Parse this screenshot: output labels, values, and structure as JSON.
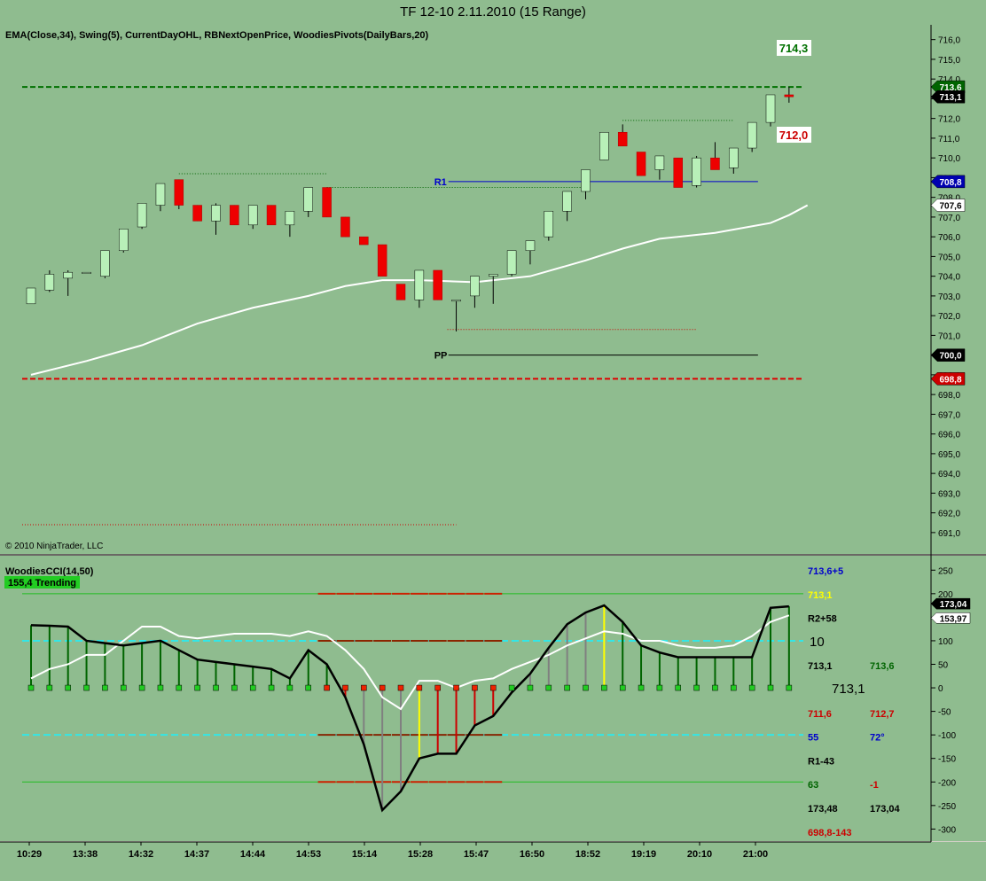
{
  "window": {
    "title": "TF 12-10  2.11.2010 (15 Range)"
  },
  "price_panel": {
    "indicators": "EMA(Close,34), Swing(5), CurrentDayOHL, RBNextOpenPrice, WoodiesPivots(DailyBars,20)",
    "copyright": "© 2010 NinjaTrader, LLC",
    "floating_labels": {
      "high": "714,3",
      "low": "712,0"
    },
    "pivot_labels": {
      "r1": "R1",
      "pp": "PP"
    },
    "axis_badges": [
      {
        "text": "713,6",
        "value": 713.6,
        "bg": "#006400",
        "fg": "#ffffff"
      },
      {
        "text": "713,1",
        "value": 713.1,
        "bg": "#000000",
        "fg": "#ffffff"
      },
      {
        "text": "708,8",
        "value": 708.8,
        "bg": "#0000b0",
        "fg": "#ffffff"
      },
      {
        "text": "707,6",
        "value": 707.6,
        "bg": "#ffffff",
        "fg": "#000000"
      },
      {
        "text": "700,0",
        "value": 700.0,
        "bg": "#000000",
        "fg": "#ffffff"
      },
      {
        "text": "698,8",
        "value": 698.8,
        "bg": "#cc0000",
        "fg": "#ffffff"
      }
    ]
  },
  "cci_panel": {
    "title": "WoodiesCCI(14,50)",
    "status": "155,4 Trending",
    "right_labels": [
      {
        "col": 1,
        "row": 0,
        "text": "713,6+5",
        "color": "#0000cc"
      },
      {
        "col": 1,
        "row": 1,
        "text": "713,1",
        "color": "#ffff00"
      },
      {
        "col": 1,
        "row": 2,
        "text": "R2+58",
        "color": "#000000"
      },
      {
        "col": 1,
        "row": 4,
        "text": "713,1",
        "color": "#000000"
      },
      {
        "col": 2,
        "row": 4,
        "text": "713,6",
        "color": "#006400"
      },
      {
        "col": 1,
        "row": 6,
        "text": "711,6",
        "color": "#cc0000"
      },
      {
        "col": 2,
        "row": 6,
        "text": "712,7",
        "color": "#cc0000"
      },
      {
        "col": 1,
        "row": 7,
        "text": "55",
        "color": "#0000cc"
      },
      {
        "col": 2,
        "row": 7,
        "text": "72°",
        "color": "#0000cc"
      },
      {
        "col": 1,
        "row": 8,
        "text": "R1-43",
        "color": "#000000"
      },
      {
        "col": 1,
        "row": 9,
        "text": "63",
        "color": "#006400"
      },
      {
        "col": 2,
        "row": 9,
        "text": "-1",
        "color": "#cc0000"
      },
      {
        "col": 1,
        "row": 10,
        "text": "173,48",
        "color": "#000000"
      },
      {
        "col": 2,
        "row": 10,
        "text": "173,04",
        "color": "#000000"
      },
      {
        "col": 1,
        "row": 11,
        "text": "698,8-143",
        "color": "#cc0000"
      }
    ],
    "big_labels": {
      "count": "10",
      "price": "713,1"
    },
    "axis_badges": [
      {
        "text": "173,04",
        "value": 173.04,
        "bg": "#000000",
        "fg": "#ffffff"
      },
      {
        "text": "153,97",
        "value": 153.97,
        "bg": "#ffffff",
        "fg": "#000000"
      }
    ]
  },
  "chart_data": {
    "type": "candlestick",
    "price_axis": {
      "ylim": [
        690.5,
        716.3
      ],
      "ticks": [
        "716,0",
        "715,0",
        "714,0",
        "713,0",
        "712,0",
        "711,0",
        "710,0",
        "709,0",
        "708,0",
        "707,0",
        "706,0",
        "705,0",
        "704,0",
        "703,0",
        "702,0",
        "701,0",
        "700,0",
        "699,0",
        "698,0",
        "697,0",
        "696,0",
        "695,0",
        "694,0",
        "693,0",
        "692,0",
        "691,0"
      ]
    },
    "cci_axis": {
      "ylim": [
        -320,
        275
      ],
      "ticks": [
        "250",
        "200",
        "150",
        "100",
        "50",
        "0",
        "-50",
        "-100",
        "-150",
        "-200",
        "-250",
        "-300"
      ]
    },
    "time_labels": [
      "10:29",
      "13:38",
      "14:32",
      "14:37",
      "14:44",
      "14:53",
      "15:14",
      "15:28",
      "15:47",
      "16:50",
      "18:52",
      "19:19",
      "20:10",
      "21:00"
    ],
    "candles": [
      [
        702.6,
        703.4,
        702.6,
        703.4
      ],
      [
        703.3,
        704.3,
        703.2,
        704.1
      ],
      [
        703.9,
        704.3,
        703.0,
        704.2
      ],
      [
        704.2,
        704.2,
        704.2,
        704.2
      ],
      [
        704.0,
        705.3,
        703.9,
        705.3
      ],
      [
        705.3,
        706.4,
        705.2,
        706.4
      ],
      [
        706.5,
        707.7,
        706.4,
        707.7
      ],
      [
        707.6,
        708.7,
        707.3,
        708.7
      ],
      [
        708.9,
        708.9,
        707.4,
        707.6
      ],
      [
        707.6,
        707.6,
        706.8,
        706.8
      ],
      [
        706.8,
        707.7,
        706.1,
        707.6
      ],
      [
        707.6,
        707.6,
        706.6,
        706.6
      ],
      [
        706.6,
        707.6,
        706.4,
        707.6
      ],
      [
        707.6,
        707.6,
        706.6,
        706.6
      ],
      [
        706.6,
        707.3,
        706.0,
        707.3
      ],
      [
        707.3,
        708.5,
        707.0,
        708.5
      ],
      [
        708.5,
        708.5,
        707.0,
        707.0
      ],
      [
        707.0,
        707.0,
        706.0,
        706.0
      ],
      [
        706.0,
        706.0,
        705.6,
        705.6
      ],
      [
        705.6,
        705.6,
        704.0,
        704.0
      ],
      [
        703.6,
        703.6,
        702.8,
        702.8
      ],
      [
        702.8,
        704.3,
        702.4,
        704.3
      ],
      [
        704.3,
        704.3,
        702.8,
        702.8
      ],
      [
        702.8,
        702.8,
        701.2,
        702.8
      ],
      [
        703.0,
        704.0,
        702.4,
        704.0
      ],
      [
        704.0,
        704.1,
        702.6,
        704.1
      ],
      [
        704.1,
        705.3,
        704.0,
        705.3
      ],
      [
        705.3,
        705.8,
        704.6,
        705.8
      ],
      [
        706.0,
        707.3,
        705.8,
        707.3
      ],
      [
        707.3,
        708.3,
        706.8,
        708.3
      ],
      [
        708.3,
        709.4,
        707.9,
        709.4
      ],
      [
        709.9,
        711.3,
        709.9,
        711.3
      ],
      [
        711.3,
        711.7,
        710.6,
        710.6
      ],
      [
        710.3,
        710.3,
        709.1,
        709.1
      ],
      [
        709.4,
        710.1,
        708.9,
        710.1
      ],
      [
        710.0,
        710.0,
        708.5,
        708.5
      ],
      [
        708.6,
        710.1,
        708.5,
        710.0
      ],
      [
        710.0,
        710.8,
        709.4,
        709.4
      ],
      [
        709.5,
        710.5,
        709.2,
        710.5
      ],
      [
        710.5,
        711.8,
        710.3,
        711.8
      ],
      [
        711.8,
        713.2,
        711.6,
        713.2
      ],
      [
        713.2,
        713.6,
        712.8,
        713.1
      ]
    ],
    "ema34": [
      [
        0,
        699.0
      ],
      [
        3,
        699.7
      ],
      [
        6,
        700.5
      ],
      [
        9,
        701.6
      ],
      [
        12,
        702.4
      ],
      [
        15,
        703.0
      ],
      [
        17,
        703.5
      ],
      [
        19,
        703.8
      ],
      [
        21,
        703.8
      ],
      [
        24,
        703.7
      ],
      [
        27,
        704.0
      ],
      [
        30,
        704.8
      ],
      [
        32,
        705.4
      ],
      [
        34,
        705.9
      ],
      [
        37,
        706.2
      ],
      [
        40,
        706.7
      ],
      [
        41,
        707.1
      ],
      [
        42,
        707.6
      ]
    ],
    "swing_high_levels": [
      {
        "from": 8,
        "to": 16,
        "value": 709.2
      },
      {
        "from": 16,
        "to": 30,
        "value": 708.5
      },
      {
        "from": 32,
        "to": 38,
        "value": 711.9
      }
    ],
    "swing_low_levels": [
      {
        "from": 23,
        "to": 36,
        "value": 701.3
      },
      {
        "from": 0,
        "to": 23,
        "value": 691.4
      }
    ],
    "pivots": {
      "r1": 708.8,
      "pp": 700.0,
      "from": 22,
      "to": 41
    },
    "current_day": {
      "high": 713.6,
      "low": 698.8
    },
    "cci": [
      [
        0,
        133
      ],
      [
        1,
        132
      ],
      [
        2,
        130
      ],
      [
        3,
        100
      ],
      [
        4,
        95
      ],
      [
        5,
        90
      ],
      [
        6,
        95
      ],
      [
        7,
        100
      ],
      [
        8,
        80
      ],
      [
        9,
        60
      ],
      [
        10,
        55
      ],
      [
        11,
        50
      ],
      [
        12,
        45
      ],
      [
        13,
        40
      ],
      [
        14,
        20
      ],
      [
        15,
        80
      ],
      [
        16,
        50
      ],
      [
        17,
        -20
      ],
      [
        18,
        -120
      ],
      [
        19,
        -260
      ],
      [
        20,
        -220
      ],
      [
        21,
        -150
      ],
      [
        22,
        -140
      ],
      [
        23,
        -140
      ],
      [
        24,
        -80
      ],
      [
        25,
        -60
      ],
      [
        26,
        -10
      ],
      [
        27,
        30
      ],
      [
        28,
        85
      ],
      [
        29,
        135
      ],
      [
        30,
        160
      ],
      [
        31,
        175
      ],
      [
        32,
        140
      ],
      [
        33,
        90
      ],
      [
        34,
        75
      ],
      [
        35,
        65
      ],
      [
        36,
        65
      ],
      [
        37,
        65
      ],
      [
        38,
        65
      ],
      [
        39,
        65
      ],
      [
        40,
        170
      ],
      [
        41,
        173.04
      ]
    ],
    "turbo_cci": [
      [
        0,
        20
      ],
      [
        1,
        40
      ],
      [
        2,
        50
      ],
      [
        3,
        70
      ],
      [
        4,
        70
      ],
      [
        5,
        100
      ],
      [
        6,
        130
      ],
      [
        7,
        130
      ],
      [
        8,
        110
      ],
      [
        9,
        105
      ],
      [
        10,
        110
      ],
      [
        11,
        115
      ],
      [
        12,
        115
      ],
      [
        13,
        115
      ],
      [
        14,
        110
      ],
      [
        15,
        120
      ],
      [
        16,
        110
      ],
      [
        17,
        80
      ],
      [
        18,
        40
      ],
      [
        19,
        -20
      ],
      [
        20,
        -45
      ],
      [
        21,
        15
      ],
      [
        22,
        15
      ],
      [
        23,
        0
      ],
      [
        24,
        15
      ],
      [
        25,
        20
      ],
      [
        26,
        40
      ],
      [
        27,
        55
      ],
      [
        28,
        70
      ],
      [
        29,
        90
      ],
      [
        30,
        105
      ],
      [
        31,
        120
      ],
      [
        32,
        115
      ],
      [
        33,
        100
      ],
      [
        34,
        100
      ],
      [
        35,
        90
      ],
      [
        36,
        85
      ],
      [
        37,
        85
      ],
      [
        38,
        90
      ],
      [
        39,
        110
      ],
      [
        40,
        140
      ],
      [
        41,
        153.97
      ]
    ],
    "histogram_colors": [
      "g",
      "g",
      "g",
      "g",
      "g",
      "g",
      "g",
      "g",
      "g",
      "g",
      "g",
      "g",
      "g",
      "g",
      "g",
      "g",
      "g",
      "r",
      "gy",
      "gy",
      "gy",
      "y",
      "r",
      "r",
      "r",
      "r",
      "gy",
      "gy",
      "gy",
      "gy",
      "gy",
      "y",
      "g",
      "g",
      "g",
      "g",
      "g",
      "g",
      "g",
      "g",
      "g",
      "g"
    ],
    "sidewinder_colors": [
      "g",
      "g",
      "g",
      "g",
      "g",
      "g",
      "g",
      "g",
      "g",
      "g",
      "g",
      "g",
      "g",
      "g",
      "g",
      "g",
      "r",
      "r",
      "r",
      "r",
      "r",
      "r",
      "r",
      "r",
      "r",
      "r",
      "g",
      "g",
      "g",
      "g",
      "g",
      "g",
      "g",
      "g",
      "g",
      "g",
      "g",
      "g",
      "g",
      "g",
      "g",
      "g"
    ]
  }
}
